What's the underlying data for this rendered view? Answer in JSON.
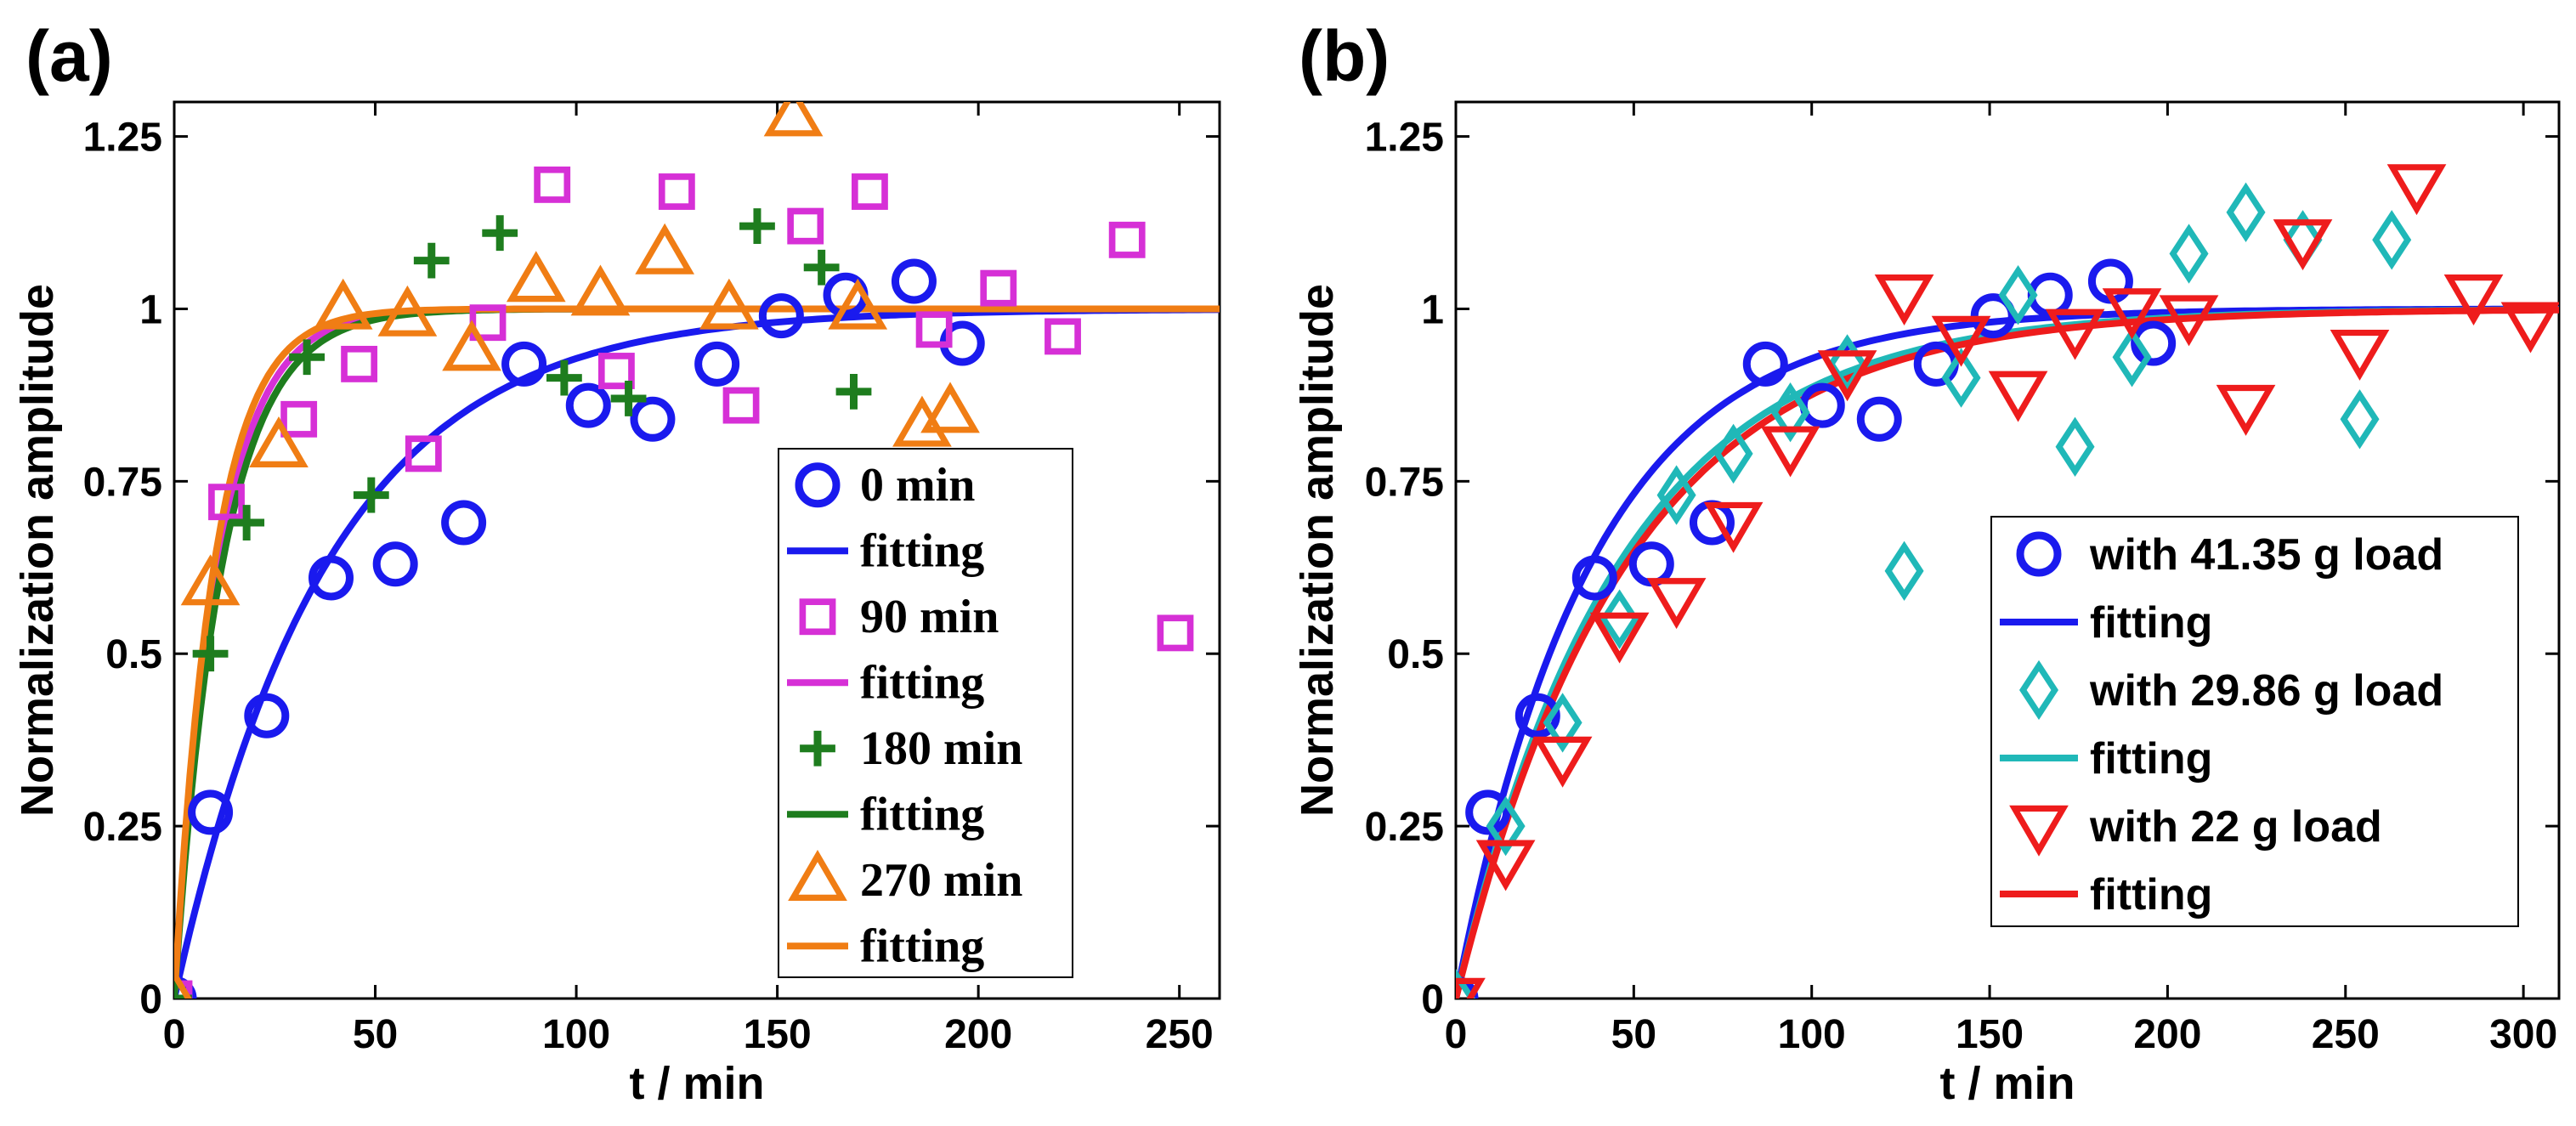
{
  "chart_data": [
    {
      "panel": "(a)",
      "type": "scatter",
      "xlabel": "t / min",
      "ylabel": "Normalization amplitude",
      "xlim": [
        0,
        260
      ],
      "ylim": [
        0,
        1.3
      ],
      "xticks": [
        0,
        50,
        100,
        150,
        200,
        250
      ],
      "yticks": [
        0,
        0.25,
        0.5,
        0.75,
        1,
        1.25
      ],
      "ytick_labels": [
        "0",
        "0.25",
        "0.5",
        "0.75",
        "1",
        "1.25"
      ],
      "legend_position": "bottom-right",
      "legend_font": "serif",
      "series": [
        {
          "name": "0 min",
          "marker": "circle",
          "color": "#1a1aee",
          "x": [
            0,
            9,
            23,
            39,
            55,
            72,
            87,
            103,
            119,
            135,
            151,
            167,
            184,
            196
          ],
          "y": [
            0,
            0.27,
            0.41,
            0.61,
            0.63,
            0.69,
            0.92,
            0.86,
            0.84,
            0.92,
            0.99,
            1.02,
            1.04,
            0.95
          ]
        },
        {
          "name": "fitting",
          "type": "line",
          "color": "#1a1aee",
          "fit": {
            "tau": 38,
            "xmax": 260
          }
        },
        {
          "name": "90 min",
          "marker": "square",
          "color": "#d630d6",
          "x": [
            0,
            13,
            31,
            46,
            62,
            78,
            94,
            110,
            125,
            141,
            157,
            173,
            189,
            205,
            221,
            237,
            249
          ],
          "y": [
            0,
            0.72,
            0.84,
            0.92,
            0.79,
            0.98,
            1.18,
            0.91,
            1.17,
            0.86,
            1.12,
            1.17,
            0.97,
            1.03,
            0.96,
            1.1,
            0.53
          ]
        },
        {
          "name": "fitting",
          "type": "line",
          "color": "#d630d6",
          "fit": {
            "tau": 11,
            "xmax": 260
          }
        },
        {
          "name": "180 min",
          "marker": "plus",
          "color": "#1e7d1e",
          "x": [
            0,
            9,
            18,
            33,
            49,
            64,
            81,
            97,
            113,
            145,
            161,
            169
          ],
          "y": [
            0,
            0.5,
            0.69,
            0.93,
            0.73,
            1.07,
            1.11,
            0.9,
            0.87,
            1.12,
            1.06,
            0.88
          ]
        },
        {
          "name": "fitting",
          "type": "line",
          "color": "#1e7d1e",
          "fit": {
            "tau": 12,
            "xmax": 260
          }
        },
        {
          "name": "270 min",
          "marker": "triangle-up",
          "color": "#f07d14",
          "x": [
            0,
            9,
            26,
            42,
            58,
            74,
            90,
            106,
            122,
            138,
            154,
            170,
            186,
            193
          ],
          "y": [
            0,
            0.6,
            0.8,
            1.0,
            0.99,
            0.94,
            1.04,
            1.02,
            1.08,
            1.0,
            1.28,
            1.0,
            0.83,
            0.85
          ]
        },
        {
          "name": "fitting",
          "type": "line",
          "color": "#f07d14",
          "fit": {
            "tau": 10,
            "xmax": 260
          }
        }
      ]
    },
    {
      "panel": "(b)",
      "type": "scatter",
      "xlabel": "t / min",
      "ylabel": "Normalization amplitude",
      "xlim": [
        0,
        310
      ],
      "ylim": [
        0,
        1.3
      ],
      "xticks": [
        0,
        50,
        100,
        150,
        200,
        250,
        300
      ],
      "yticks": [
        0,
        0.25,
        0.5,
        0.75,
        1,
        1.25
      ],
      "ytick_labels": [
        "0",
        "0.25",
        "0.5",
        "0.75",
        "1",
        "1.25"
      ],
      "legend_position": "bottom-right",
      "legend_font": "sans",
      "series": [
        {
          "name": "with 41.35 g load",
          "marker": "circle",
          "color": "#1a1aee",
          "x": [
            0,
            9,
            23,
            39,
            55,
            72,
            87,
            103,
            119,
            135,
            151,
            167,
            184,
            196
          ],
          "y": [
            0,
            0.27,
            0.41,
            0.61,
            0.63,
            0.69,
            0.92,
            0.86,
            0.84,
            0.92,
            0.99,
            1.02,
            1.04,
            0.95
          ]
        },
        {
          "name": "fitting",
          "type": "line",
          "color": "#1a1aee",
          "fit": {
            "tau": 38,
            "xmax": 310
          }
        },
        {
          "name": "with 29.86 g load",
          "marker": "diamond",
          "color": "#20b8b8",
          "x": [
            0,
            14,
            30,
            46,
            62,
            78,
            94,
            110,
            126,
            142,
            158,
            174,
            190,
            206,
            222,
            238,
            254,
            263
          ],
          "y": [
            0,
            0.25,
            0.4,
            0.55,
            0.73,
            0.79,
            0.85,
            0.92,
            0.62,
            0.9,
            1.02,
            0.8,
            0.93,
            1.08,
            1.14,
            1.1,
            0.84,
            1.1
          ]
        },
        {
          "name": "fitting",
          "type": "line",
          "color": "#20b8b8",
          "fit": {
            "tau": 46,
            "xmax": 310
          }
        },
        {
          "name": "with 22 g load",
          "marker": "triangle-down",
          "color": "#ee1c1c",
          "x": [
            0,
            14,
            30,
            46,
            62,
            78,
            94,
            110,
            126,
            142,
            158,
            174,
            190,
            206,
            222,
            238,
            254,
            270,
            286,
            302
          ],
          "y": [
            0,
            0.2,
            0.35,
            0.53,
            0.58,
            0.69,
            0.8,
            0.91,
            1.02,
            0.96,
            0.88,
            0.97,
            1.0,
            0.99,
            0.86,
            1.1,
            0.94,
            1.18,
            1.02,
            0.98
          ]
        },
        {
          "name": "fitting",
          "type": "line",
          "color": "#ee1c1c",
          "fit": {
            "tau": 48,
            "xmax": 310
          }
        }
      ]
    }
  ]
}
